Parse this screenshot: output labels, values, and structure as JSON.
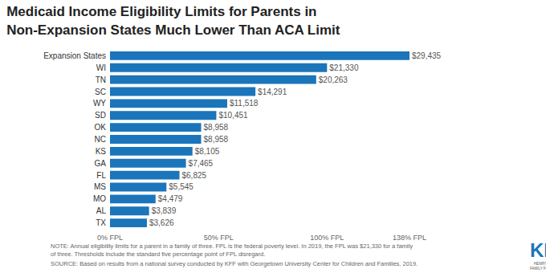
{
  "chart_data": {
    "type": "bar",
    "orientation": "horizontal",
    "title": "Medicaid Income Eligibility Limits for Parents in Non-Expansion States Much Lower Than ACA Limit",
    "categories": [
      "Expansion States",
      "WI",
      "TN",
      "SC",
      "WY",
      "SD",
      "OK",
      "NC",
      "KS",
      "GA",
      "FL",
      "MS",
      "MO",
      "AL",
      "TX"
    ],
    "values": [
      29435,
      21330,
      20263,
      14291,
      11518,
      10451,
      8958,
      8958,
      8105,
      7465,
      6825,
      5545,
      4479,
      3839,
      3626
    ],
    "value_labels": [
      "$29,435",
      "$21,330",
      "$20,263",
      "$14,291",
      "$11,518",
      "$10,451",
      "$8,958",
      "$8,958",
      "$8,105",
      "$7,465",
      "$6,825",
      "$5,545",
      "$4,479",
      "$3,839",
      "$3,626"
    ],
    "data_labels": true,
    "color": "#1b75bb",
    "xlim": [
      0,
      29435
    ],
    "xticks": [
      {
        "value": 0,
        "label": "0% FPL"
      },
      {
        "value": 10665,
        "label": "50% FPL"
      },
      {
        "value": 21330,
        "label": "100% FPL"
      },
      {
        "value": 29435,
        "label": "138% FPL"
      }
    ],
    "grid": false,
    "annotations": [
      "NOTE: Annual eligibility limits for a parent in a family of three. FPL is the federal poverty level. In 2019, the FPL was $21,330 for a family of three. Thresholds include the standard five percentage point of FPL disregard.",
      "SOURCE: Based on results from a national survey conducted by KFF with Georgetown University Center for Children and Families, 2019.",
      "KFF",
      "HENRY J KAISER FAMILY FOUNDATION"
    ]
  }
}
